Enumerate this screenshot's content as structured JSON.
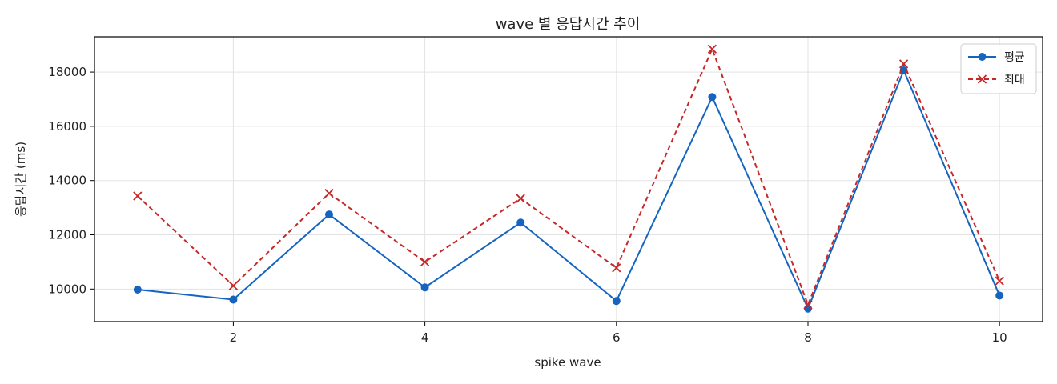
{
  "chart_data": {
    "type": "line",
    "title": "wave 별 응답시간 추이",
    "xlabel": "spike wave",
    "ylabel": "응답시간 (ms)",
    "x": [
      1,
      2,
      3,
      4,
      5,
      6,
      7,
      8,
      9,
      10
    ],
    "xlim": [
      0.55,
      10.45
    ],
    "ylim": [
      8800,
      19300
    ],
    "xticks": [
      2,
      4,
      6,
      8,
      10
    ],
    "yticks": [
      10000,
      12000,
      14000,
      16000,
      18000
    ],
    "grid": true,
    "legend_position": "top-right",
    "series": [
      {
        "name": "평균",
        "color": "#1565c0",
        "line_style": "solid",
        "marker": "circle",
        "values": [
          9980,
          9610,
          12750,
          10060,
          12450,
          9560,
          17080,
          9280,
          18060,
          9760
        ]
      },
      {
        "name": "최대",
        "color": "#c62828",
        "line_style": "dashed",
        "marker": "x",
        "values": [
          13430,
          10120,
          13530,
          11000,
          13340,
          10780,
          18850,
          9420,
          18300,
          10300
        ]
      }
    ]
  }
}
